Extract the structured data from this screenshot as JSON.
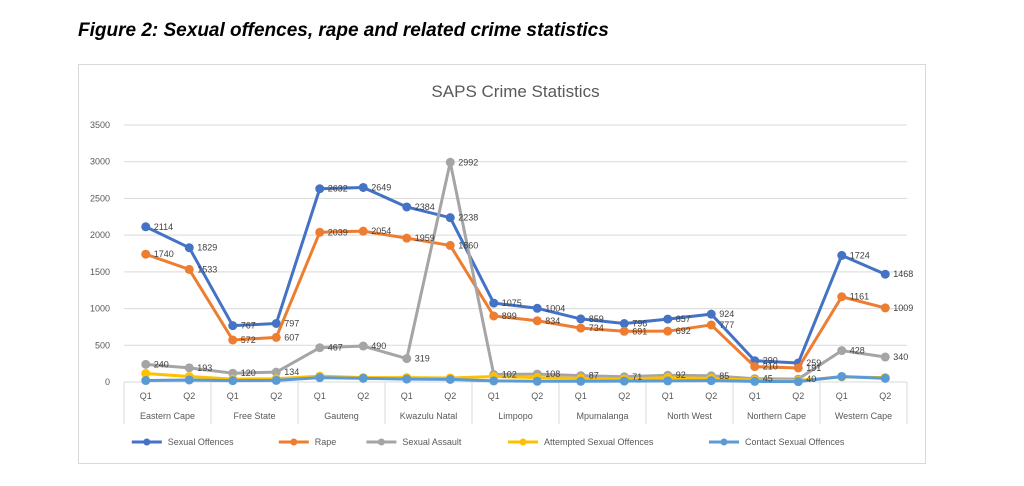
{
  "figure_caption": "Figure 2: Sexual offences, rape and related crime statistics",
  "chart_data": {
    "type": "line",
    "title": "SAPS Crime Statistics",
    "xlabel": "",
    "ylabel": "",
    "ylim": [
      0,
      3500
    ],
    "yticks": [
      0,
      500,
      1000,
      1500,
      2000,
      2500,
      3000,
      3500
    ],
    "grid": true,
    "legend_position": "bottom",
    "groups": [
      "Eastern Cape",
      "Free State",
      "Gauteng",
      "Kwazulu Natal",
      "Limpopo",
      "Mpumalanga",
      "North West",
      "Northern Cape",
      "Western Cape"
    ],
    "quarters": [
      "Q1",
      "Q2"
    ],
    "categories": [
      "Eastern Cape Q1",
      "Eastern Cape Q2",
      "Free State Q1",
      "Free State Q2",
      "Gauteng Q1",
      "Gauteng Q2",
      "Kwazulu Natal Q1",
      "Kwazulu Natal Q2",
      "Limpopo Q1",
      "Limpopo Q2",
      "Mpumalanga Q1",
      "Mpumalanga Q2",
      "North West Q1",
      "North West Q2",
      "Northern Cape Q1",
      "Northern Cape Q2",
      "Western Cape Q1",
      "Western Cape Q2"
    ],
    "series": [
      {
        "name": "Sexual Offences",
        "color": "#4472c4",
        "values": [
          2114,
          1829,
          767,
          797,
          2632,
          2649,
          2384,
          2238,
          1075,
          1004,
          859,
          796,
          857,
          924,
          290,
          259,
          1724,
          1468
        ],
        "labels": [
          "2114",
          "1829",
          "767",
          "797",
          "2632",
          "2649",
          "2384",
          "2238",
          "1075",
          "1004",
          "859",
          "796",
          "857",
          "924",
          "290",
          "259",
          "1724",
          "1468"
        ]
      },
      {
        "name": "Rape",
        "color": "#ed7d31",
        "values": [
          1740,
          1533,
          572,
          607,
          2039,
          2054,
          1959,
          1860,
          899,
          834,
          734,
          691,
          692,
          777,
          210,
          191,
          1161,
          1009
        ],
        "labels": [
          "1740",
          "1533",
          "572",
          "607",
          "2039",
          "2054",
          "1959",
          "1860",
          "899",
          "834",
          "734",
          "691",
          "692",
          "777",
          "210",
          "191",
          "1161",
          "1009"
        ]
      },
      {
        "name": "Sexual Assault",
        "color": "#a5a5a5",
        "values": [
          240,
          193,
          120,
          134,
          467,
          490,
          319,
          2992,
          102,
          108,
          87,
          71,
          92,
          85,
          45,
          40,
          428,
          340
        ],
        "labels": [
          "240",
          "193",
          "120",
          "134",
          "467",
          "490",
          "319",
          "2992",
          "102",
          "108",
          "87",
          "71",
          "92",
          "85",
          "45",
          "40",
          "428",
          "340"
        ]
      },
      {
        "name": "Attempted Sexual Offences",
        "color": "#ffc000",
        "values": [
          115,
          75,
          40,
          45,
          80,
          60,
          60,
          55,
          75,
          60,
          50,
          40,
          60,
          50,
          25,
          20,
          70,
          60
        ]
      },
      {
        "name": "Contact Sexual Offences",
        "color": "#5b9bd5",
        "values": [
          20,
          28,
          18,
          22,
          60,
          50,
          40,
          35,
          15,
          10,
          10,
          12,
          15,
          18,
          8,
          5,
          75,
          50
        ]
      }
    ]
  }
}
